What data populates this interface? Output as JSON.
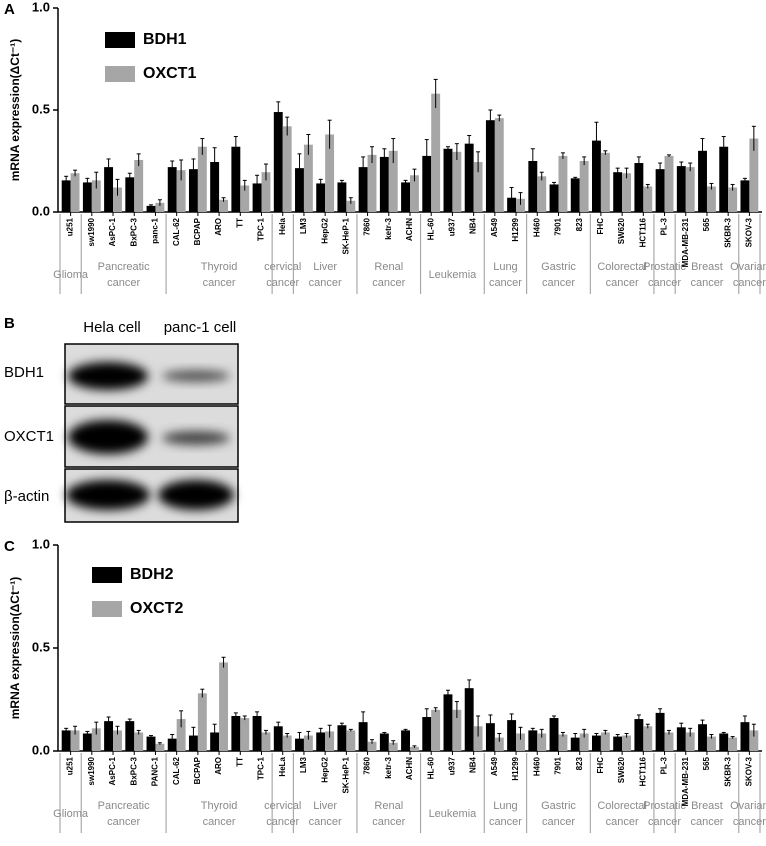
{
  "chart_data": [
    {
      "type": "bar",
      "panel_label": "A",
      "y_label": "mRNA expression(ΔCt⁻¹)",
      "ylim": [
        0,
        1.0
      ],
      "yticks": [
        {
          "value": 0,
          "label": "0.0"
        },
        {
          "value": 0.5,
          "label": "0.5"
        },
        {
          "value": 1.0,
          "label": "1.0"
        }
      ],
      "groups": [
        {
          "label": [
            "Glioma"
          ],
          "categories": [
            "u251"
          ]
        },
        {
          "label": [
            "Pancreatic",
            "cancer"
          ],
          "categories": [
            "sw1990",
            "AsPC-1",
            "BxPC-3",
            "panc-1"
          ]
        },
        {
          "label": [
            "Thyroid",
            "cancer"
          ],
          "categories": [
            "CAL-62",
            "BCPAP",
            "ARO",
            "TT",
            "TPC-1"
          ]
        },
        {
          "label": [
            "cervical",
            "cancer"
          ],
          "categories": [
            "Hela"
          ]
        },
        {
          "label": [
            "Liver",
            "cancer"
          ],
          "categories": [
            "LM3",
            "HepG2",
            "SK-HeP-1"
          ]
        },
        {
          "label": [
            "Renal",
            "cancer"
          ],
          "categories": [
            "7860",
            "ketr-3",
            "ACHN"
          ]
        },
        {
          "label": [
            "Leukemia"
          ],
          "categories": [
            "HL-60",
            "u937",
            "NB4"
          ]
        },
        {
          "label": [
            "Lung",
            "cancer"
          ],
          "categories": [
            "A549",
            "H1299"
          ]
        },
        {
          "label": [
            "Gastric",
            "cancer"
          ],
          "categories": [
            "H460",
            "7901",
            "823"
          ]
        },
        {
          "label": [
            "Colorectal",
            "cancer"
          ],
          "categories": [
            "FHC",
            "SW620",
            "HCT116"
          ]
        },
        {
          "label": [
            "Prostatic",
            "cancer"
          ],
          "categories": [
            "PL-3"
          ]
        },
        {
          "label": [
            "Breast",
            "cancer"
          ],
          "categories": [
            "MDA-MB-231",
            "565",
            "SKBR-3"
          ]
        },
        {
          "label": [
            "Ovarian",
            "cancer"
          ],
          "categories": [
            "SKOV-3"
          ]
        }
      ],
      "series": [
        {
          "name": "BDH1",
          "color": "#000000",
          "values": [
            0.155,
            0.145,
            0.22,
            0.17,
            0.03,
            0.22,
            0.21,
            0.245,
            0.32,
            0.14,
            0.49,
            0.215,
            0.14,
            0.145,
            0.22,
            0.27,
            0.145,
            0.275,
            0.31,
            0.335,
            0.45,
            0.07,
            0.25,
            0.135,
            0.165,
            0.35,
            0.195,
            0.24,
            0.21,
            0.225,
            0.3,
            0.32,
            0.155
          ],
          "errors": [
            0.02,
            0.02,
            0.04,
            0.02,
            0.005,
            0.03,
            0.05,
            0.07,
            0.05,
            0.04,
            0.05,
            0.07,
            0.02,
            0.01,
            0.05,
            0.04,
            0.01,
            0.08,
            0.01,
            0.04,
            0.05,
            0.05,
            0.06,
            0.01,
            0.005,
            0.09,
            0.02,
            0.03,
            0.03,
            0.02,
            0.06,
            0.05,
            0.01
          ]
        },
        {
          "name": "OXCT1",
          "color": "#a6a6a6",
          "values": [
            0.19,
            0.155,
            0.12,
            0.255,
            0.045,
            0.205,
            0.32,
            0.06,
            0.13,
            0.195,
            0.42,
            0.33,
            0.38,
            0.055,
            0.28,
            0.3,
            0.18,
            0.58,
            0.295,
            0.245,
            0.46,
            0.065,
            0.175,
            0.275,
            0.25,
            0.29,
            0.19,
            0.125,
            0.275,
            0.22,
            0.125,
            0.12,
            0.36
          ],
          "errors": [
            0.015,
            0.04,
            0.04,
            0.03,
            0.015,
            0.05,
            0.04,
            0.01,
            0.025,
            0.04,
            0.045,
            0.05,
            0.07,
            0.015,
            0.04,
            0.06,
            0.03,
            0.07,
            0.04,
            0.05,
            0.015,
            0.03,
            0.02,
            0.015,
            0.02,
            0.01,
            0.025,
            0.01,
            0.005,
            0.02,
            0.015,
            0.015,
            0.06
          ]
        }
      ]
    },
    {
      "type": "bar",
      "panel_label": "C",
      "y_label": "mRNA expression(ΔCt⁻¹)",
      "ylim": [
        0,
        1.0
      ],
      "yticks": [
        {
          "value": 0,
          "label": "0.0"
        },
        {
          "value": 0.5,
          "label": "0.5"
        },
        {
          "value": 1.0,
          "label": "1.0"
        }
      ],
      "groups": [
        {
          "label": [
            "Glioma"
          ],
          "categories": [
            "u251"
          ]
        },
        {
          "label": [
            "Pancreatic",
            "cancer"
          ],
          "categories": [
            "sw1990",
            "AsPC-1",
            "BxPC-3",
            "PANC-1"
          ]
        },
        {
          "label": [
            "Thyroid",
            "cancer"
          ],
          "categories": [
            "CAL-62",
            "BCPAP",
            "ARO",
            "TT",
            "TPC-1"
          ]
        },
        {
          "label": [
            "cervical",
            "cancer"
          ],
          "categories": [
            "HeLa"
          ]
        },
        {
          "label": [
            "Liver",
            "cancer"
          ],
          "categories": [
            "LM3",
            "HepG2",
            "SK-HeP-1"
          ]
        },
        {
          "label": [
            "Renal",
            "cancer"
          ],
          "categories": [
            "7860",
            "ketr-3",
            "ACHN"
          ]
        },
        {
          "label": [
            "Leukemia"
          ],
          "categories": [
            "HL-60",
            "u937",
            "NB4"
          ]
        },
        {
          "label": [
            "Lung",
            "cancer"
          ],
          "categories": [
            "A549",
            "H1299"
          ]
        },
        {
          "label": [
            "Gastric",
            "cancer"
          ],
          "categories": [
            "H460",
            "7901",
            "823"
          ]
        },
        {
          "label": [
            "Colorectal",
            "cancer"
          ],
          "categories": [
            "FHC",
            "SW620",
            "HCT116"
          ]
        },
        {
          "label": [
            "Prostatic",
            "cancer"
          ],
          "categories": [
            "PL-3"
          ]
        },
        {
          "label": [
            "Breast",
            "cancer"
          ],
          "categories": [
            "MDA-MB-231",
            "565",
            "SKBR-3"
          ]
        },
        {
          "label": [
            "Ovarian",
            "cancer"
          ],
          "categories": [
            "SKOV-3"
          ]
        }
      ],
      "series": [
        {
          "name": "BDH2",
          "color": "#000000",
          "values": [
            0.1,
            0.085,
            0.145,
            0.145,
            0.07,
            0.06,
            0.075,
            0.09,
            0.17,
            0.17,
            0.12,
            0.06,
            0.09,
            0.125,
            0.14,
            0.085,
            0.1,
            0.165,
            0.275,
            0.305,
            0.135,
            0.15,
            0.1,
            0.16,
            0.065,
            0.075,
            0.07,
            0.155,
            0.185,
            0.115,
            0.13,
            0.085,
            0.14
          ],
          "errors": [
            0.01,
            0.01,
            0.02,
            0.01,
            0.005,
            0.02,
            0.04,
            0.04,
            0.015,
            0.02,
            0.02,
            0.03,
            0.02,
            0.01,
            0.05,
            0.005,
            0.005,
            0.04,
            0.02,
            0.04,
            0.04,
            0.03,
            0.01,
            0.01,
            0.02,
            0.01,
            0.01,
            0.02,
            0.02,
            0.02,
            0.02,
            0.005,
            0.03
          ]
        },
        {
          "name": "OXCT2",
          "color": "#a6a6a6",
          "values": [
            0.1,
            0.11,
            0.1,
            0.09,
            0.035,
            0.155,
            0.28,
            0.43,
            0.16,
            0.09,
            0.075,
            0.075,
            0.095,
            0.1,
            0.045,
            0.04,
            0.02,
            0.2,
            0.2,
            0.12,
            0.065,
            0.085,
            0.085,
            0.08,
            0.085,
            0.09,
            0.075,
            0.12,
            0.09,
            0.09,
            0.07,
            0.065,
            0.1
          ],
          "errors": [
            0.02,
            0.03,
            0.02,
            0.01,
            0.005,
            0.04,
            0.02,
            0.025,
            0.01,
            0.01,
            0.01,
            0.02,
            0.03,
            0.005,
            0.01,
            0.01,
            0.005,
            0.01,
            0.04,
            0.05,
            0.02,
            0.03,
            0.02,
            0.01,
            0.02,
            0.01,
            0.01,
            0.01,
            0.01,
            0.02,
            0.01,
            0.005,
            0.03
          ]
        }
      ]
    }
  ],
  "blot": {
    "panel_label": "B",
    "columns": [
      "Hela cell",
      "panc-1 cell"
    ],
    "rows": [
      "BDH1",
      "OXCT1",
      "β-actin"
    ]
  }
}
